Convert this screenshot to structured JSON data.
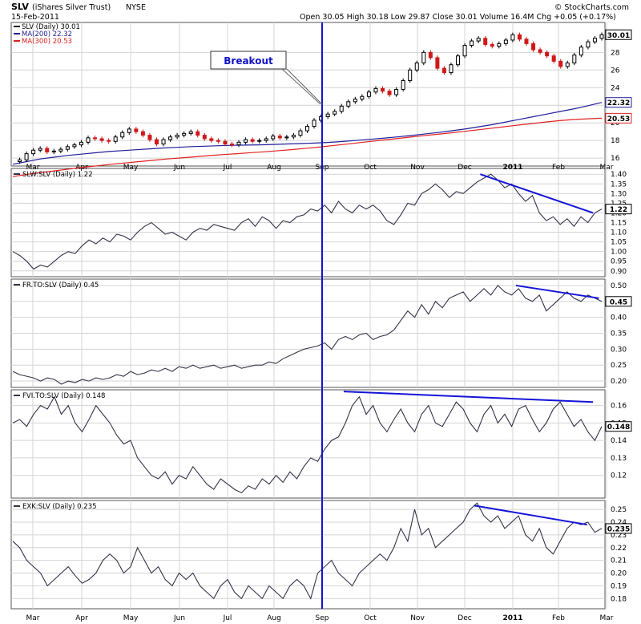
{
  "header": {
    "symbol": "SLV",
    "name": "(iShares Silver Trust)",
    "exchange": "NYSE",
    "date": "15-Feb-2011",
    "quote": "Open 30.05  High 30.18  Low 29.87  Close 30.01  Volume 16.4M  Chg +0.05 (+0.17%)",
    "watermark": "© StockCharts.com"
  },
  "colors": {
    "price_line": "#000000",
    "ma200": "#1f1f9a",
    "ma300": "#e02020",
    "up_candle": "#000000",
    "down_candle": "#d01818",
    "trend_lines": "#1414d8",
    "grid": "#d4d4d4",
    "marker_line": "#1414c8",
    "ratio_line": "#33334a"
  },
  "x_axis": {
    "month_labels": [
      "Mar",
      "Apr",
      "May",
      "Jun",
      "Jul",
      "Aug",
      "Sep",
      "Oct",
      "Nov",
      "Dec",
      "2011",
      "Feb",
      "Mar"
    ],
    "top_labels": [
      "Mar",
      "Apr",
      "May",
      "Jun",
      "Jul",
      "Aug",
      "Sep",
      "Oct",
      "Nov",
      "Dec",
      "2011",
      "Feb",
      "Mar"
    ]
  },
  "annotation": {
    "breakout_label": "Breakout"
  },
  "chart_data": [
    {
      "type": "line",
      "panel": "price",
      "legend": "SLV (Daily) 30.01",
      "series": [
        {
          "name": "SLV (Daily) 30.01",
          "values": [
            15.6,
            15.8,
            16.5,
            16.9,
            17.1,
            16.7,
            16.8,
            17.0,
            17.3,
            17.5,
            17.8,
            18.3,
            18.2,
            18.0,
            17.9,
            18.4,
            18.9,
            19.3,
            19.0,
            18.6,
            18.1,
            17.6,
            18.1,
            18.4,
            18.6,
            18.8,
            19.0,
            18.6,
            18.2,
            18.0,
            17.9,
            17.6,
            17.5,
            17.8,
            18.1,
            17.9,
            18.0,
            18.2,
            18.5,
            18.3,
            18.4,
            18.6,
            19.1,
            19.6,
            20.3,
            20.7,
            21.0,
            21.3,
            21.9,
            22.4,
            22.7,
            23.0,
            23.5,
            23.9,
            23.6,
            23.2,
            23.8,
            24.8,
            26.0,
            26.8,
            28.0,
            27.4,
            26.2,
            25.7,
            26.6,
            27.6,
            28.8,
            29.3,
            29.6,
            28.9,
            28.7,
            29.0,
            29.4,
            30.0,
            29.5,
            29.0,
            28.3,
            28.0,
            27.6,
            27.0,
            26.4,
            26.8,
            27.7,
            28.6,
            29.2,
            29.6,
            30.01
          ]
        },
        {
          "name": "MA(200) 22.32",
          "values": [
            15.3,
            15.6,
            15.9,
            16.1,
            16.3,
            16.45,
            16.6,
            16.75,
            16.85,
            16.95,
            17.05,
            17.15,
            17.22,
            17.3,
            17.35,
            17.4,
            17.45,
            17.48,
            17.5,
            17.55,
            17.6,
            17.65,
            17.7,
            17.78,
            17.88,
            18.0,
            18.12,
            18.25,
            18.4,
            18.55,
            18.72,
            18.9,
            19.1,
            19.3,
            19.55,
            19.8,
            20.1,
            20.4,
            20.7,
            21.0,
            21.3,
            21.6,
            21.95,
            22.32
          ]
        },
        {
          "name": "MA(300) 20.53",
          "values": [
            13.9,
            14.15,
            14.35,
            14.55,
            14.75,
            14.95,
            15.12,
            15.3,
            15.45,
            15.6,
            15.75,
            15.9,
            16.02,
            16.15,
            16.28,
            16.4,
            16.5,
            16.62,
            16.72,
            16.85,
            16.98,
            17.12,
            17.28,
            17.45,
            17.62,
            17.8,
            17.98,
            18.15,
            18.32,
            18.5,
            18.66,
            18.82,
            19.0,
            19.18,
            19.36,
            19.55,
            19.74,
            19.92,
            20.1,
            20.25,
            20.38,
            20.46,
            20.53
          ]
        }
      ],
      "yticks": [
        16,
        18,
        20,
        22,
        24,
        26,
        28
      ],
      "ylim": [
        15.1,
        31.4
      ],
      "last_value_labels": [
        "30.01",
        "22.32",
        "20.53"
      ]
    },
    {
      "type": "line",
      "panel": "ratio",
      "legend": "SLW:SLV (Daily) 1.22",
      "values": [
        1.0,
        0.98,
        0.95,
        0.91,
        0.93,
        0.92,
        0.95,
        0.98,
        1.0,
        0.99,
        1.03,
        1.06,
        1.04,
        1.07,
        1.05,
        1.09,
        1.08,
        1.06,
        1.1,
        1.13,
        1.15,
        1.12,
        1.09,
        1.1,
        1.08,
        1.06,
        1.1,
        1.12,
        1.11,
        1.14,
        1.13,
        1.12,
        1.11,
        1.15,
        1.17,
        1.13,
        1.18,
        1.16,
        1.12,
        1.16,
        1.15,
        1.18,
        1.19,
        1.22,
        1.21,
        1.24,
        1.2,
        1.26,
        1.22,
        1.2,
        1.24,
        1.22,
        1.24,
        1.21,
        1.16,
        1.14,
        1.19,
        1.25,
        1.24,
        1.3,
        1.32,
        1.35,
        1.32,
        1.28,
        1.31,
        1.3,
        1.33,
        1.36,
        1.38,
        1.4,
        1.37,
        1.33,
        1.35,
        1.3,
        1.26,
        1.29,
        1.2,
        1.16,
        1.18,
        1.14,
        1.17,
        1.13,
        1.18,
        1.15,
        1.2,
        1.22
      ],
      "yticks": [
        0.9,
        0.95,
        1.0,
        1.05,
        1.1,
        1.15,
        1.2,
        1.25,
        1.3,
        1.35,
        1.4
      ],
      "ylim": [
        0.87,
        1.43
      ],
      "last_value_label": "1.22"
    },
    {
      "type": "line",
      "panel": "ratio",
      "legend": "FR.TO:SLV (Daily) 0.45",
      "values": [
        0.23,
        0.22,
        0.215,
        0.21,
        0.2,
        0.21,
        0.205,
        0.19,
        0.2,
        0.195,
        0.205,
        0.2,
        0.21,
        0.205,
        0.21,
        0.22,
        0.215,
        0.23,
        0.22,
        0.225,
        0.235,
        0.23,
        0.24,
        0.23,
        0.245,
        0.24,
        0.25,
        0.24,
        0.245,
        0.25,
        0.24,
        0.245,
        0.25,
        0.24,
        0.245,
        0.25,
        0.25,
        0.26,
        0.255,
        0.27,
        0.28,
        0.29,
        0.3,
        0.305,
        0.31,
        0.32,
        0.3,
        0.33,
        0.34,
        0.33,
        0.345,
        0.35,
        0.33,
        0.34,
        0.345,
        0.36,
        0.39,
        0.42,
        0.4,
        0.44,
        0.41,
        0.45,
        0.43,
        0.46,
        0.47,
        0.48,
        0.45,
        0.47,
        0.49,
        0.47,
        0.5,
        0.48,
        0.47,
        0.49,
        0.46,
        0.45,
        0.47,
        0.42,
        0.44,
        0.46,
        0.48,
        0.46,
        0.45,
        0.47,
        0.46,
        0.45
      ],
      "yticks": [
        0.2,
        0.25,
        0.3,
        0.35,
        0.4,
        0.45,
        0.5
      ],
      "ylim": [
        0.18,
        0.52
      ],
      "last_value_label": "0.45"
    },
    {
      "type": "line",
      "panel": "ratio",
      "legend": "FVI.TO:SLV (Daily) 0.148",
      "values": [
        0.15,
        0.152,
        0.148,
        0.155,
        0.16,
        0.158,
        0.165,
        0.155,
        0.16,
        0.15,
        0.145,
        0.152,
        0.16,
        0.155,
        0.15,
        0.143,
        0.138,
        0.14,
        0.13,
        0.125,
        0.12,
        0.118,
        0.122,
        0.115,
        0.12,
        0.118,
        0.125,
        0.12,
        0.115,
        0.112,
        0.118,
        0.115,
        0.112,
        0.11,
        0.114,
        0.112,
        0.118,
        0.115,
        0.12,
        0.116,
        0.122,
        0.118,
        0.125,
        0.13,
        0.128,
        0.135,
        0.14,
        0.142,
        0.15,
        0.16,
        0.165,
        0.155,
        0.16,
        0.15,
        0.145,
        0.152,
        0.158,
        0.15,
        0.145,
        0.155,
        0.16,
        0.15,
        0.148,
        0.155,
        0.162,
        0.158,
        0.15,
        0.145,
        0.155,
        0.16,
        0.15,
        0.155,
        0.148,
        0.158,
        0.16,
        0.152,
        0.145,
        0.15,
        0.158,
        0.162,
        0.155,
        0.148,
        0.152,
        0.145,
        0.14,
        0.148
      ],
      "yticks": [
        0.12,
        0.13,
        0.14,
        0.15,
        0.16
      ],
      "ylim": [
        0.107,
        0.169
      ],
      "last_value_label": "0.148"
    },
    {
      "type": "line",
      "panel": "ratio",
      "legend": "EXK:SLV (Daily) 0.235",
      "values": [
        0.225,
        0.22,
        0.21,
        0.205,
        0.2,
        0.19,
        0.195,
        0.2,
        0.205,
        0.198,
        0.192,
        0.195,
        0.2,
        0.21,
        0.215,
        0.21,
        0.2,
        0.205,
        0.22,
        0.21,
        0.2,
        0.205,
        0.195,
        0.19,
        0.2,
        0.195,
        0.2,
        0.19,
        0.185,
        0.18,
        0.19,
        0.195,
        0.185,
        0.18,
        0.19,
        0.185,
        0.18,
        0.19,
        0.185,
        0.18,
        0.19,
        0.195,
        0.19,
        0.18,
        0.2,
        0.205,
        0.21,
        0.2,
        0.195,
        0.19,
        0.2,
        0.205,
        0.21,
        0.215,
        0.21,
        0.22,
        0.235,
        0.225,
        0.25,
        0.23,
        0.235,
        0.22,
        0.225,
        0.23,
        0.235,
        0.24,
        0.25,
        0.255,
        0.245,
        0.24,
        0.245,
        0.235,
        0.24,
        0.245,
        0.23,
        0.225,
        0.235,
        0.22,
        0.215,
        0.225,
        0.235,
        0.24,
        0.238,
        0.24,
        0.232,
        0.235
      ],
      "yticks": [
        0.18,
        0.19,
        0.2,
        0.21,
        0.22,
        0.23,
        0.24,
        0.25
      ],
      "ylim": [
        0.172,
        0.257
      ],
      "last_value_label": "0.235"
    }
  ]
}
